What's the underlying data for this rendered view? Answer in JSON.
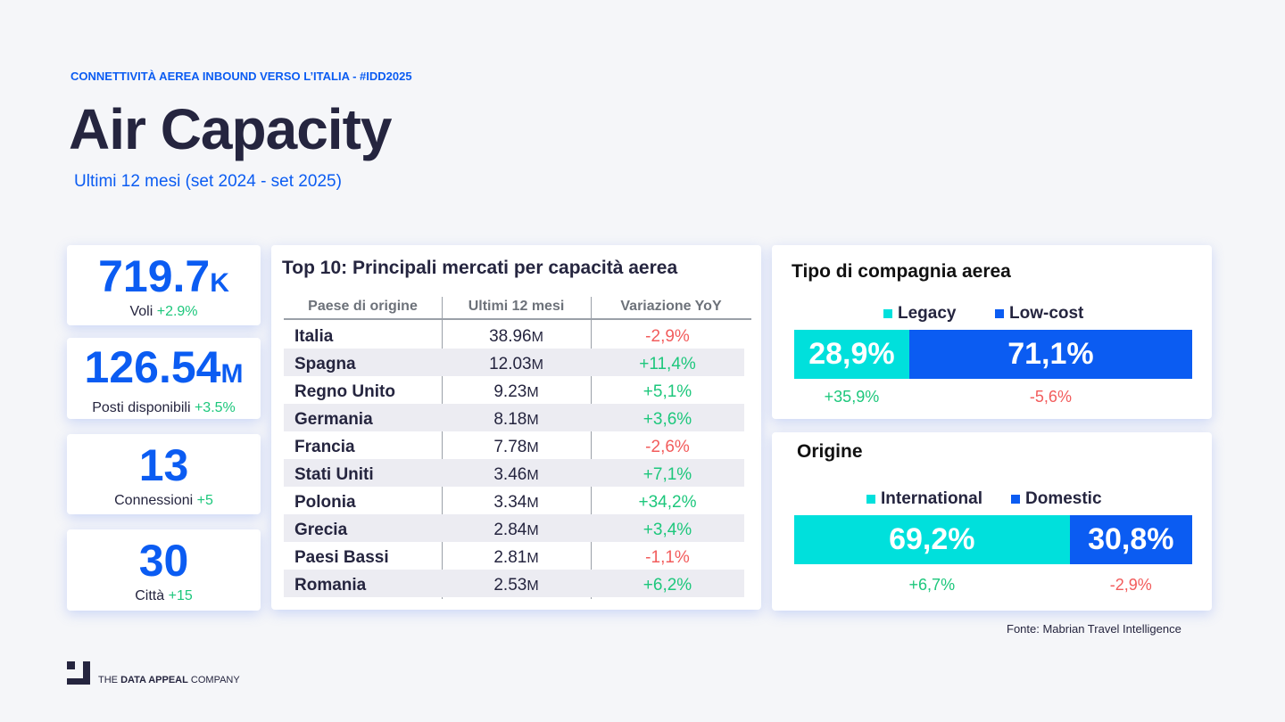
{
  "header": {
    "kicker": "CONNETTIVITÀ AEREA INBOUND VERSO L’ITALIA - #IDD2025",
    "title": "Air Capacity",
    "subtitle": "Ultimi 12 mesi (set 2024 - set 2025)"
  },
  "kpis": [
    {
      "value": "719.7",
      "unit": "K",
      "label": "Voli",
      "change": "+2.9%"
    },
    {
      "value": "126.54",
      "unit": "M",
      "label": "Posti disponibili",
      "change": "+3.5%"
    },
    {
      "value": "13",
      "unit": "",
      "label": "Connessioni",
      "change": "+5"
    },
    {
      "value": "30",
      "unit": "",
      "label": "Città",
      "change": "+15"
    }
  ],
  "table": {
    "title": "Top 10: Principali mercati per capacità aerea",
    "columns": [
      "Paese di origine",
      "Ultimi 12 mesi",
      "Variazione YoY"
    ],
    "rows": [
      {
        "country": "Italia",
        "value": "38.96",
        "unit": "M",
        "yoy": "-2,9%"
      },
      {
        "country": "Spagna",
        "value": "12.03",
        "unit": "M",
        "yoy": "+11,4%"
      },
      {
        "country": "Regno Unito",
        "value": "9.23",
        "unit": "M",
        "yoy": "+5,1%"
      },
      {
        "country": "Germania",
        "value": "8.18",
        "unit": "M",
        "yoy": "+3,6%"
      },
      {
        "country": "Francia",
        "value": "7.78",
        "unit": "M",
        "yoy": "-2,6%"
      },
      {
        "country": "Stati Uniti",
        "value": "3.46",
        "unit": "M",
        "yoy": "+7,1%"
      },
      {
        "country": "Polonia",
        "value": "3.34",
        "unit": "M",
        "yoy": "+34,2%"
      },
      {
        "country": "Grecia",
        "value": "2.84",
        "unit": "M",
        "yoy": "+3,4%"
      },
      {
        "country": "Paesi Bassi",
        "value": "2.81",
        "unit": "M",
        "yoy": "-1,1%"
      },
      {
        "country": "Romania",
        "value": "2.53",
        "unit": "M",
        "yoy": "+6,2%"
      }
    ]
  },
  "airline_type": {
    "title": "Tipo di compagnia aerea",
    "segments": [
      {
        "label": "Legacy",
        "share": 28.9,
        "share_text": "28,9%",
        "change": "+35,9%",
        "color": "#00e0dc"
      },
      {
        "label": "Low-cost",
        "share": 71.1,
        "share_text": "71,1%",
        "change": "-5,6%",
        "color": "#0b5cf2"
      }
    ]
  },
  "origin": {
    "title": "Origine",
    "segments": [
      {
        "label": "International",
        "share": 69.2,
        "share_text": "69,2%",
        "change": "+6,7%",
        "color": "#00e0dc"
      },
      {
        "label": "Domestic",
        "share": 30.8,
        "share_text": "30,8%",
        "change": "-2,9%",
        "color": "#0b5cf2"
      }
    ]
  },
  "source": "Fonte: Mabrian Travel Intelligence",
  "footer": {
    "brand_pre": "THE ",
    "brand_bold": "DATA APPEAL",
    "brand_post": " COMPANY"
  }
}
